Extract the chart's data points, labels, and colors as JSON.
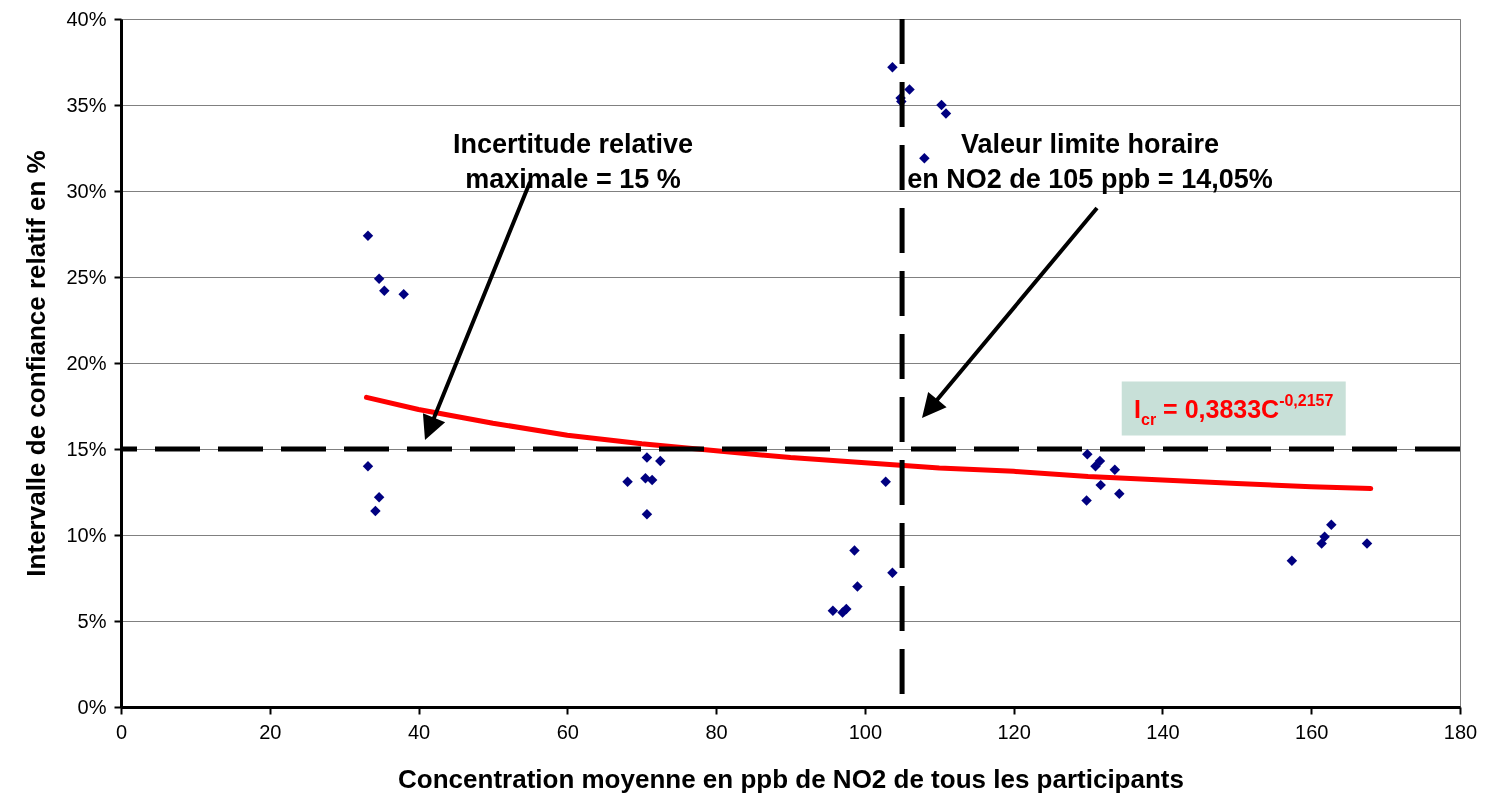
{
  "chart_data": {
    "type": "scatter",
    "xlabel": "Concentration moyenne en ppb de NO2 de tous les participants",
    "ylabel": "Intervalle de confiance relatif en %",
    "xlim": [
      0,
      180
    ],
    "xticks": [
      0,
      20,
      40,
      60,
      80,
      100,
      120,
      140,
      160,
      180
    ],
    "ylim": [
      0,
      40
    ],
    "yticks": [
      {
        "value": 0,
        "label": "0%"
      },
      {
        "value": 5,
        "label": "5%"
      },
      {
        "value": 10,
        "label": "10%"
      },
      {
        "value": 15,
        "label": "15%"
      },
      {
        "value": 20,
        "label": "20%"
      },
      {
        "value": 25,
        "label": "25%"
      },
      {
        "value": 30,
        "label": "30%"
      },
      {
        "value": 35,
        "label": "35%"
      },
      {
        "value": 40,
        "label": "40%"
      }
    ],
    "grid": "y",
    "marker": "diamond",
    "series": [
      {
        "color": "#000080",
        "x": [
          33.2,
          34.7,
          35.4,
          38.0,
          33.2,
          34.7,
          34.2,
          70.7,
          72.5,
          68.1,
          70.5,
          71.4,
          70.7,
          103.7,
          106.0,
          104.8,
          104.9,
          110.3,
          110.9,
          108.0,
          102.8,
          98.6,
          99.0,
          103.7,
          95.7,
          97.0,
          97.5,
          129.9,
          131.0,
          131.6,
          133.6,
          131.7,
          129.8,
          134.2,
          162.7,
          161.8,
          161.4,
          167.5,
          157.4
        ],
        "values": [
          27.4,
          24.9,
          24.2,
          24.0,
          14.0,
          12.2,
          11.4,
          14.5,
          14.3,
          13.1,
          13.3,
          13.2,
          11.2,
          37.2,
          35.9,
          35.4,
          35.2,
          35.0,
          34.5,
          31.9,
          13.1,
          9.1,
          7.0,
          7.8,
          5.6,
          5.5,
          5.7,
          14.7,
          14.0,
          14.3,
          13.8,
          12.9,
          12.0,
          12.4,
          10.6,
          9.9,
          9.5,
          9.5,
          8.5
        ]
      },
      {
        "type": "line",
        "marker": "none",
        "name": "I$_{cr}$ = 0,3833C$^{-0,2157}$",
        "color": "#ff0000",
        "x": [
          33,
          40,
          50,
          60,
          70,
          80,
          90,
          100,
          110,
          120,
          130,
          140,
          150,
          160,
          168
        ],
        "values": [
          18.0,
          17.3,
          16.5,
          15.8,
          15.3,
          14.9,
          14.5,
          14.2,
          13.9,
          13.7,
          13.4,
          13.2,
          13.0,
          12.8,
          12.7
        ]
      }
    ],
    "ref_lines": [
      {
        "axis": "y",
        "value": 15,
        "color": "#000000",
        "line_style": "dashed"
      },
      {
        "axis": "x",
        "value": 105,
        "color": "#000000",
        "line_style": "dashed"
      }
    ],
    "annotations": [
      "Incertitude relative\nmaximale = 15 %",
      "Valeur limite horaire\nen NO2 de 105 ppb = 14,05%"
    ]
  }
}
